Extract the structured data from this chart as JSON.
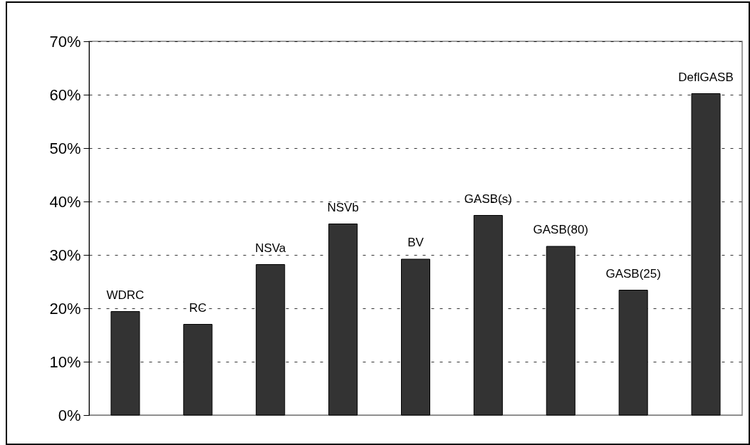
{
  "chart_data": {
    "type": "bar",
    "categories": [
      "WDRC",
      "RC",
      "NSVa",
      "NSVb",
      "BV",
      "GASB(s)",
      "GASB(80)",
      "GASB(25)",
      "DeflGASB"
    ],
    "values": [
      19.4,
      17.0,
      28.2,
      35.8,
      29.2,
      37.4,
      31.6,
      23.4,
      60.2
    ],
    "color": "#333333",
    "ylim": [
      0,
      70
    ],
    "yticks": [
      {
        "value": 0,
        "label": "0%"
      },
      {
        "value": 10,
        "label": "10%"
      },
      {
        "value": 20,
        "label": "20%"
      },
      {
        "value": 30,
        "label": "30%"
      },
      {
        "value": 40,
        "label": "40%"
      },
      {
        "value": 50,
        "label": "50%"
      },
      {
        "value": 60,
        "label": "60%"
      },
      {
        "value": 70,
        "label": "70%"
      }
    ],
    "grid": "y"
  }
}
